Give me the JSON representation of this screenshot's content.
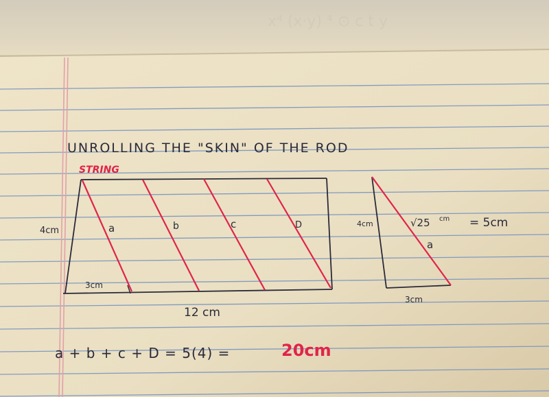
{
  "title": "UNROLLING THE \"SKIN\" OF THE ROD",
  "string_label": "STRING",
  "rectangle": {
    "height_label": "4cm",
    "segment_label": "3cm",
    "width_label": "12 cm",
    "segments": [
      "a",
      "b",
      "c",
      "D"
    ]
  },
  "triangle": {
    "height_label": "4cm",
    "base_label": "3cm",
    "hypotenuse_expr": "√25",
    "hypotenuse_unit": "cm",
    "equals_text": "= 5cm",
    "hypotenuse_label": "a"
  },
  "equation": {
    "lhs": "a + b + c + D = 5(4) =",
    "result": "20cm"
  },
  "colors": {
    "paper": "#ede2c6",
    "rule_line": "#6f8fc0",
    "margin_line": "#e2a0a8",
    "ink": "#2a2a3a",
    "red_ink": "#e0244a"
  }
}
